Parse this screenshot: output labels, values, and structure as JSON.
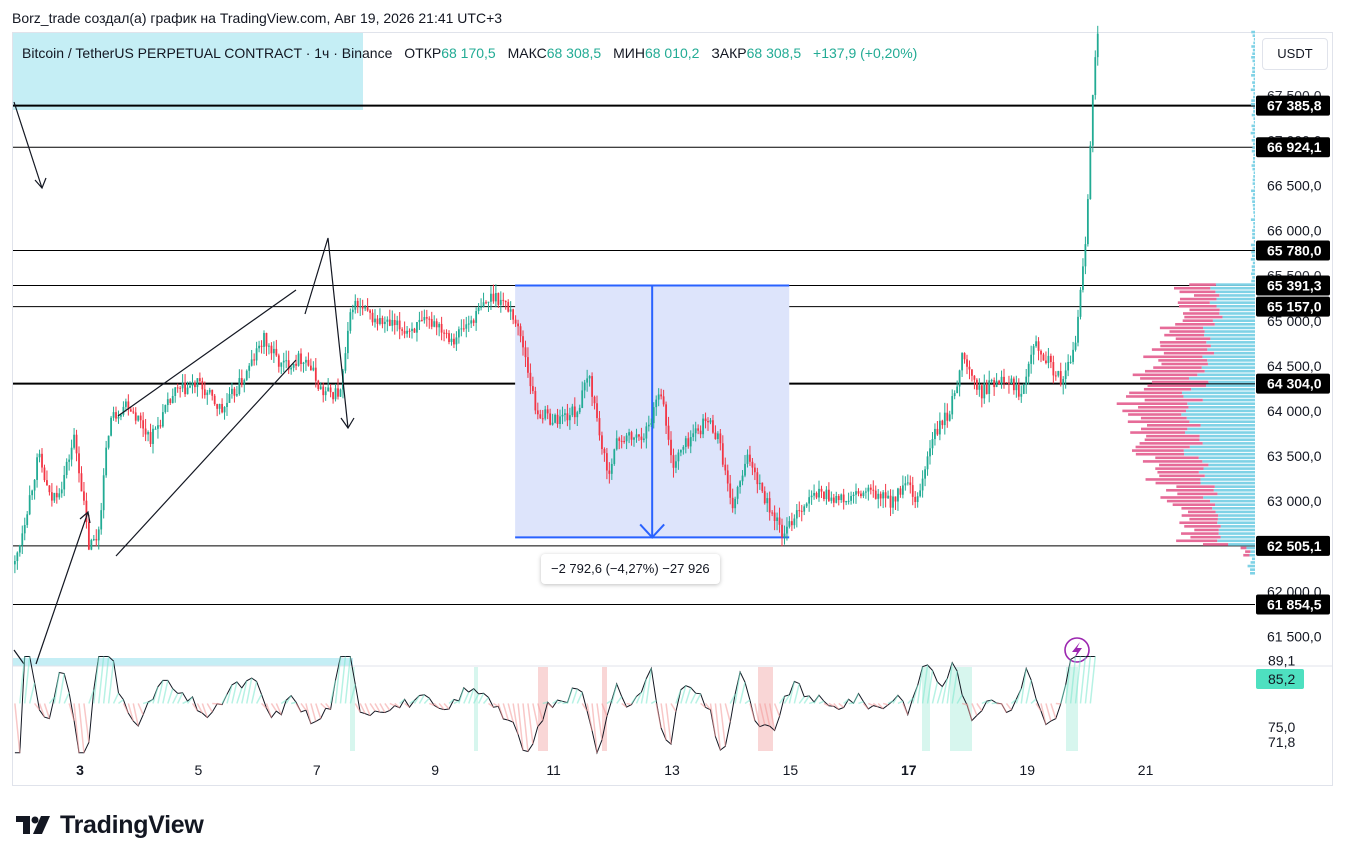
{
  "header": {
    "text": "Borz_trade создал(а) график на TradingView.com, Авг 19, 2026 21:41 UTC+3"
  },
  "legend": {
    "symbol": "Bitcoin / TetherUS PERPETUAL CONTRACT · 1ч · Binance",
    "open_label": "ОТКР",
    "open": "68 170,5",
    "high_label": "МАКС",
    "high": "68 308,5",
    "low_label": "МИН",
    "low": "68 010,2",
    "close_label": "ЗАКР",
    "close": "68 308,5",
    "change": "+137,9 (+0,20%)"
  },
  "currency_button": "USDT",
  "measure": {
    "label": "−2 792,6 (−4,27%) −27 926"
  },
  "brand": {
    "name": "TradingView"
  },
  "colors": {
    "up": "#22ab94",
    "down": "#f23645",
    "measure_fill": "#dde4fb",
    "measure_line": "#2962ff",
    "zone_fill": "#c5eef5",
    "volume_profile_up": "#7fd2e6",
    "volume_profile_down": "#e66b98",
    "rsi_line": "#22ab94",
    "rsi_tag": "#4ee0c0",
    "lightning": "#9c27b0"
  },
  "icons": {
    "lightning": "lightning-icon",
    "logo": "tradingview-logo-icon"
  },
  "chart_data": {
    "type": "candlestick",
    "interval": "1h",
    "symbol": "BTCUSDT.P",
    "price_axis": {
      "ticks": [
        {
          "value": 67500,
          "label": "67 500,0"
        },
        {
          "value": 67000,
          "label": "67 000,0"
        },
        {
          "value": 66500,
          "label": "66 500,0"
        },
        {
          "value": 66000,
          "label": "66 000,0"
        },
        {
          "value": 65500,
          "label": "65 500,0"
        },
        {
          "value": 65000,
          "label": "65 000,0"
        },
        {
          "value": 64500,
          "label": "64 500,0"
        },
        {
          "value": 64000,
          "label": "64 000,0"
        },
        {
          "value": 63500,
          "label": "63 500,0"
        },
        {
          "value": 63000,
          "label": "63 000,0"
        },
        {
          "value": 62500,
          "label": "62 500,0"
        },
        {
          "value": 62000,
          "label": "62 000,0"
        },
        {
          "value": 61500,
          "label": "61 500,0"
        }
      ],
      "range": [
        61200,
        68300
      ]
    },
    "horizontal_levels": [
      {
        "value": 67385.8,
        "label": "67 385,8",
        "bold": true
      },
      {
        "value": 66924.1,
        "label": "66 924,1",
        "bold": false
      },
      {
        "value": 65780.0,
        "label": "65 780,0",
        "bold": false
      },
      {
        "value": 65391.3,
        "label": "65 391,3",
        "bold": false
      },
      {
        "value": 65157.0,
        "label": "65 157,0",
        "bold": false
      },
      {
        "value": 64304.0,
        "label": "64 304,0",
        "bold": true
      },
      {
        "value": 62505.1,
        "label": "62 505,1",
        "bold": false
      },
      {
        "value": 61854.5,
        "label": "61 854,5",
        "bold": false
      }
    ],
    "date_axis": [
      {
        "day": 3,
        "label": "3",
        "bold": true
      },
      {
        "day": 5,
        "label": "5",
        "bold": false
      },
      {
        "day": 7,
        "label": "7",
        "bold": false
      },
      {
        "day": 9,
        "label": "9",
        "bold": false
      },
      {
        "day": 11,
        "label": "11",
        "bold": false
      },
      {
        "day": 13,
        "label": "13",
        "bold": false
      },
      {
        "day": 15,
        "label": "15",
        "bold": false
      },
      {
        "day": 17,
        "label": "17",
        "bold": true
      },
      {
        "day": 19,
        "label": "19",
        "bold": false
      },
      {
        "day": 21,
        "label": "21",
        "bold": false
      }
    ],
    "price_path": [
      [
        1.9,
        62300
      ],
      [
        2.1,
        62900
      ],
      [
        2.3,
        63500
      ],
      [
        2.5,
        63000
      ],
      [
        2.7,
        63200
      ],
      [
        2.9,
        63700
      ],
      [
        3.0,
        63300
      ],
      [
        3.15,
        62500
      ],
      [
        3.3,
        62600
      ],
      [
        3.5,
        63900
      ],
      [
        3.8,
        64100
      ],
      [
        4.2,
        63700
      ],
      [
        4.6,
        64200
      ],
      [
        5.0,
        64300
      ],
      [
        5.4,
        64000
      ],
      [
        5.8,
        64400
      ],
      [
        6.1,
        64800
      ],
      [
        6.4,
        64500
      ],
      [
        6.8,
        64600
      ],
      [
        7.1,
        64200
      ],
      [
        7.4,
        64200
      ],
      [
        7.6,
        65200
      ],
      [
        8.0,
        65000
      ],
      [
        8.5,
        64900
      ],
      [
        9.0,
        65000
      ],
      [
        9.3,
        64800
      ],
      [
        9.6,
        65000
      ],
      [
        10.0,
        65300
      ],
      [
        10.3,
        65100
      ],
      [
        10.5,
        64700
      ],
      [
        10.7,
        64000
      ],
      [
        11.0,
        63900
      ],
      [
        11.4,
        64000
      ],
      [
        11.6,
        64400
      ],
      [
        11.9,
        63300
      ],
      [
        12.1,
        63700
      ],
      [
        12.4,
        63700
      ],
      [
        12.6,
        63800
      ],
      [
        12.8,
        64300
      ],
      [
        13.0,
        63400
      ],
      [
        13.3,
        63700
      ],
      [
        13.6,
        63900
      ],
      [
        13.8,
        63700
      ],
      [
        14.0,
        62900
      ],
      [
        14.3,
        63500
      ],
      [
        14.6,
        63000
      ],
      [
        14.9,
        62600
      ],
      [
        15.1,
        62900
      ],
      [
        15.5,
        63100
      ],
      [
        15.9,
        63000
      ],
      [
        16.3,
        63100
      ],
      [
        16.7,
        63000
      ],
      [
        17.0,
        63200
      ],
      [
        17.1,
        62900
      ],
      [
        17.4,
        63700
      ],
      [
        17.7,
        64000
      ],
      [
        17.9,
        64600
      ],
      [
        18.2,
        64200
      ],
      [
        18.6,
        64400
      ],
      [
        18.9,
        64200
      ],
      [
        19.1,
        64800
      ],
      [
        19.4,
        64500
      ],
      [
        19.6,
        64300
      ],
      [
        19.8,
        64700
      ],
      [
        19.9,
        65300
      ],
      [
        20.0,
        66000
      ],
      [
        20.1,
        67500
      ],
      [
        20.2,
        68300
      ]
    ],
    "rsi": {
      "ticks": [
        {
          "value": 89.1,
          "label": "89,1"
        },
        {
          "value": 75.0,
          "label": "75,0"
        },
        {
          "value": 71.8,
          "label": "71,8"
        }
      ],
      "current": {
        "value": 85.2,
        "label": "85,2"
      },
      "range": [
        68,
        92
      ]
    }
  }
}
